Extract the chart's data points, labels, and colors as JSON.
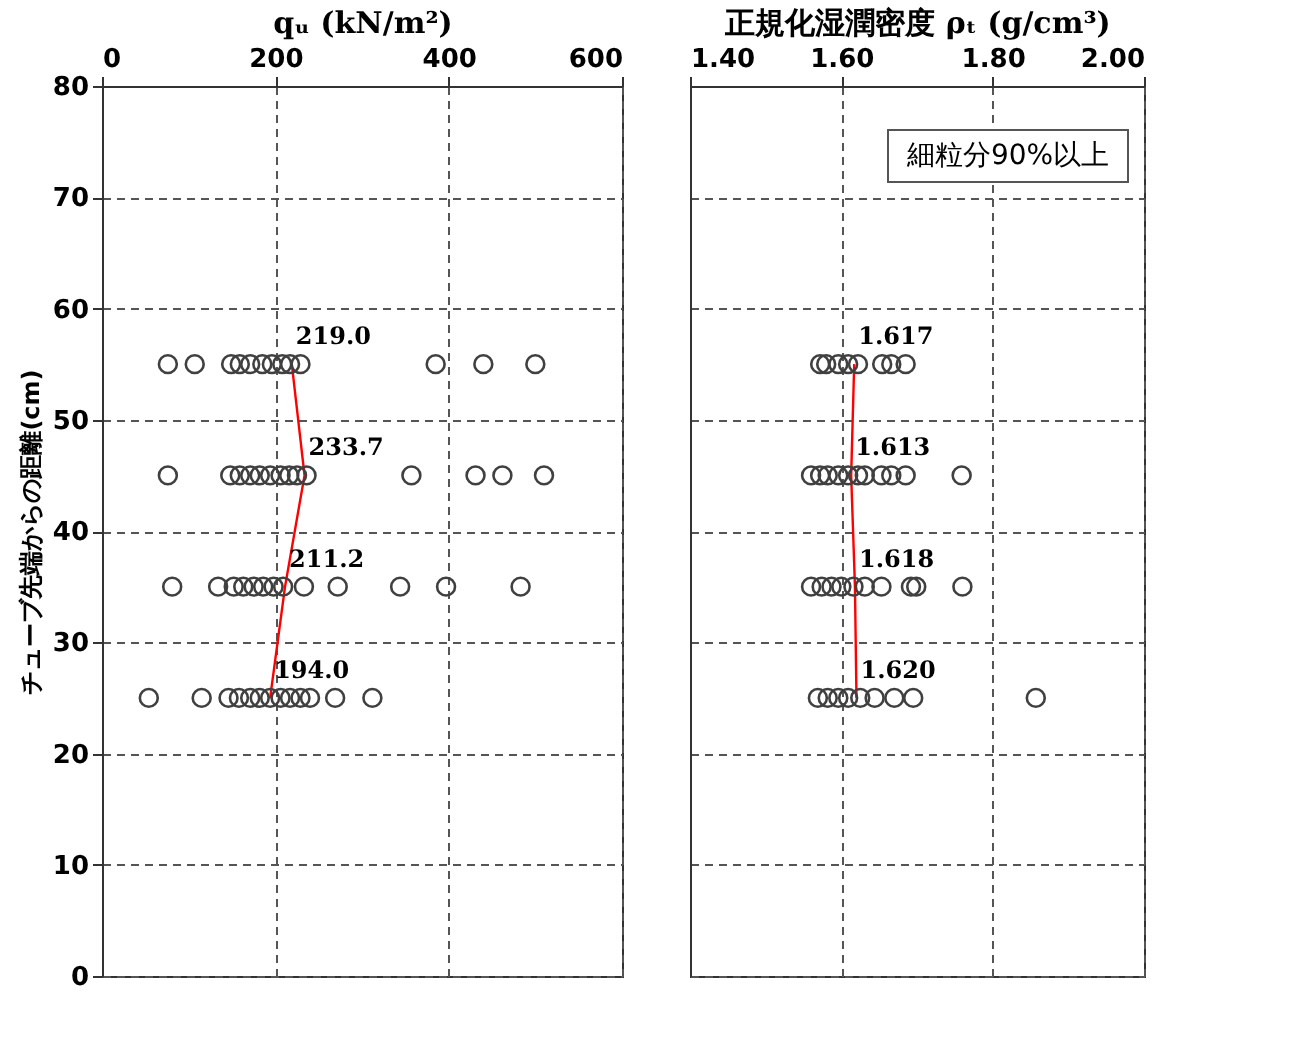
{
  "chart_data": [
    {
      "type": "scatter",
      "xlabel": "qᵤ (kN/m²)",
      "ylabel": "チューブ先端からの距離(cm)",
      "xlim": [
        0,
        600
      ],
      "xticks": [
        0,
        200,
        400,
        600
      ],
      "ylim": [
        0,
        80
      ],
      "yticks": [
        0,
        10,
        20,
        30,
        40,
        50,
        60,
        70,
        80
      ],
      "grid": true,
      "marker": "circle",
      "series": [
        {
          "color": "#404040",
          "x": [
            76,
            107,
            149,
            159,
            171,
            185,
            196,
            208,
            217,
            229,
            385,
            440,
            500
          ],
          "values": [
            55,
            55,
            55,
            55,
            55,
            55,
            55,
            55,
            55,
            55,
            55,
            55,
            55
          ]
        },
        {
          "color": "#404040",
          "x": [
            76,
            148,
            159,
            171,
            182,
            194,
            206,
            216,
            225,
            236,
            357,
            431,
            462,
            510
          ],
          "values": [
            45,
            45,
            45,
            45,
            45,
            45,
            45,
            45,
            45,
            45,
            45,
            45,
            45,
            45
          ]
        },
        {
          "color": "#404040",
          "x": [
            81,
            134,
            152,
            163,
            175,
            186,
            198,
            209,
            233,
            272,
            344,
            397,
            483
          ],
          "values": [
            35,
            35,
            35,
            35,
            35,
            35,
            35,
            35,
            35,
            35,
            35,
            35,
            35
          ]
        },
        {
          "color": "#404040",
          "x": [
            54,
            115,
            146,
            158,
            171,
            182,
            194,
            206,
            217,
            229,
            240,
            269,
            312
          ],
          "values": [
            25,
            25,
            25,
            25,
            25,
            25,
            25,
            25,
            25,
            25,
            25,
            25,
            25
          ]
        },
        {
          "type": "line",
          "marker": "none",
          "color": "#ff0000",
          "x": [
            194.0,
            211.2,
            233.7,
            219.0
          ],
          "values": [
            25,
            35,
            45,
            55
          ]
        }
      ],
      "annotations": [
        {
          "text": "219.0",
          "x": 219.0,
          "y": 55
        },
        {
          "text": "233.7",
          "x": 233.7,
          "y": 45
        },
        {
          "text": "211.2",
          "x": 211.2,
          "y": 35
        },
        {
          "text": "194.0",
          "x": 194.0,
          "y": 25
        }
      ]
    },
    {
      "type": "scatter",
      "xlabel": "正規化湿潤密度 ρₜ (g/cm³)",
      "xlim": [
        1.4,
        2.0
      ],
      "xticks": [
        {
          "value": 1.4,
          "label": "1.40"
        },
        {
          "value": 1.6,
          "label": "1.60"
        },
        {
          "value": 1.8,
          "label": "1.80"
        },
        {
          "value": 2.0,
          "label": "2.00"
        }
      ],
      "ylim": [
        0,
        80
      ],
      "yticks": [
        0,
        10,
        20,
        30,
        40,
        50,
        60,
        70,
        80
      ],
      "grid": true,
      "marker": "circle",
      "tick_labels": "x",
      "series": [
        {
          "color": "#404040",
          "x": [
            1.572,
            1.58,
            1.596,
            1.609,
            1.622,
            1.654,
            1.666,
            1.685
          ],
          "values": [
            55,
            55,
            55,
            55,
            55,
            55,
            55,
            55
          ]
        },
        {
          "color": "#404040",
          "x": [
            1.56,
            1.572,
            1.582,
            1.596,
            1.609,
            1.622,
            1.631,
            1.653,
            1.666,
            1.685,
            1.759
          ],
          "values": [
            45,
            45,
            45,
            45,
            45,
            45,
            45,
            45,
            45,
            45,
            45
          ]
        },
        {
          "color": "#404040",
          "x": [
            1.56,
            1.574,
            1.587,
            1.6,
            1.616,
            1.631,
            1.653,
            1.692,
            1.699,
            1.76
          ],
          "values": [
            35,
            35,
            35,
            35,
            35,
            35,
            35,
            35,
            35,
            35
          ]
        },
        {
          "color": "#404040",
          "x": [
            1.569,
            1.582,
            1.596,
            1.609,
            1.625,
            1.644,
            1.67,
            1.695,
            1.857
          ],
          "values": [
            25,
            25,
            25,
            25,
            25,
            25,
            25,
            25,
            25
          ]
        },
        {
          "type": "line",
          "marker": "none",
          "color": "#ff0000",
          "x": [
            1.62,
            1.618,
            1.613,
            1.617
          ],
          "values": [
            25,
            35,
            45,
            55
          ]
        }
      ],
      "annotations": [
        {
          "text": "1.617",
          "x": 1.617,
          "y": 55
        },
        {
          "text": "1.613",
          "x": 1.613,
          "y": 45
        },
        {
          "text": "1.618",
          "x": 1.618,
          "y": 35
        },
        {
          "text": "1.620",
          "x": 1.62,
          "y": 25
        },
        "細粒分90%以上"
      ]
    }
  ]
}
